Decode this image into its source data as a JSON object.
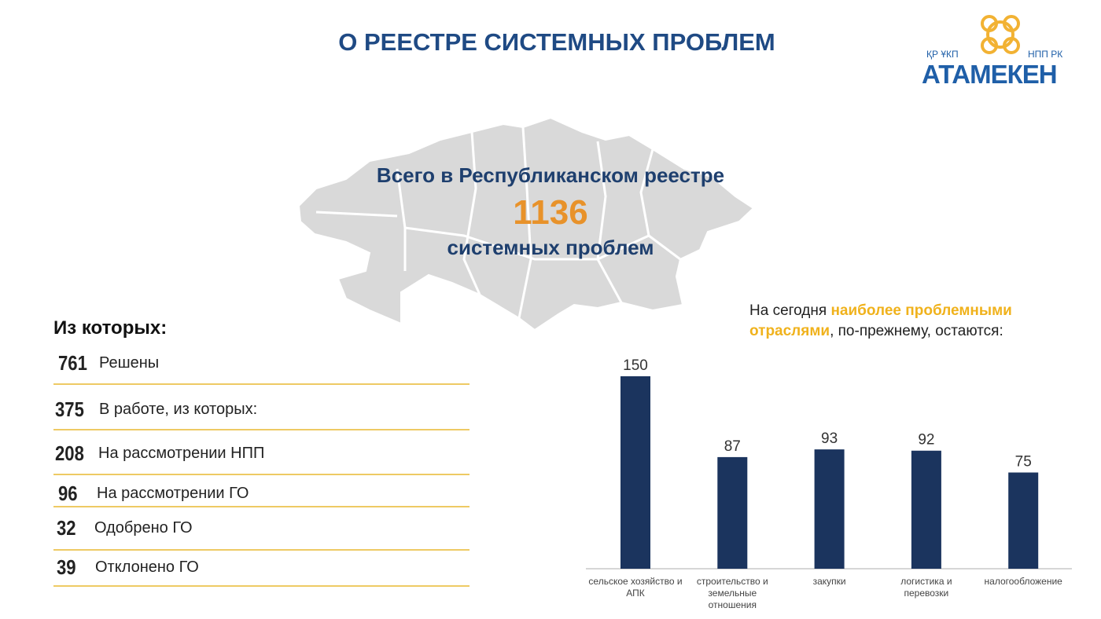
{
  "header": {
    "title": "О РЕЕСТРЕ СИСТЕМНЫХ ПРОБЛЕМ"
  },
  "logo": {
    "left": "ҚР ҰКП",
    "right": "НПП РК",
    "name": "АТАМЕКЕН"
  },
  "summary": {
    "line1": "Всего в Республиканском реестре",
    "total": "1136",
    "line2": "системных проблем"
  },
  "breakdown": {
    "title": "Из которых:",
    "rows": [
      [
        "761",
        "Решены"
      ],
      [
        "375",
        "В работе, из которых:"
      ],
      [
        "208",
        "На рассмотрении НПП"
      ],
      [
        "96",
        "На рассмотрении ГО"
      ],
      [
        "32",
        "Одобрено ГО"
      ],
      [
        "39",
        "Отклонено ГО"
      ]
    ]
  },
  "chart_data": {
    "type": "bar",
    "subtitle": {
      "before": "На сегодня ",
      "highlight": "наиболее проблемными отраслями",
      "after": ", по-прежнему, остаются:"
    },
    "categories": [
      "сельское хозяйство и АПК",
      "строительство и земельные отношения",
      "закупки",
      "логистика и перевозки",
      "налогообложение"
    ],
    "values": [
      150,
      87,
      93,
      92,
      75
    ],
    "color": "#1b345e"
  }
}
